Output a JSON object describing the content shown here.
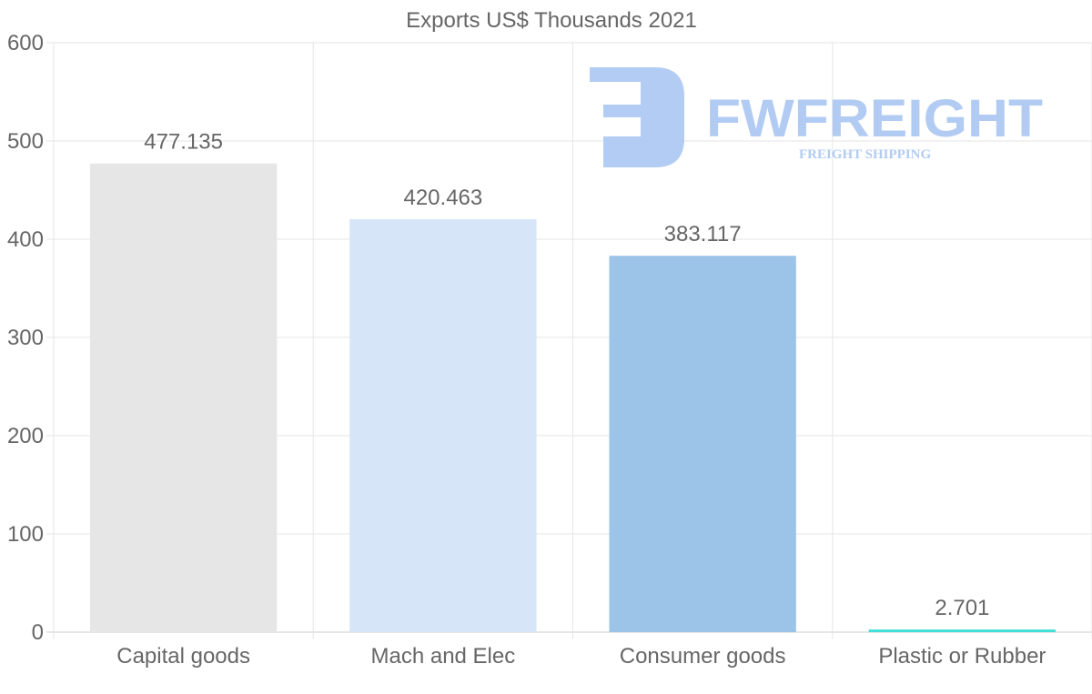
{
  "chart_data": {
    "type": "bar",
    "title": "Exports US$ Thousands 2021",
    "categories": [
      "Capital goods",
      "Mach and Elec",
      "Consumer goods",
      "Plastic or Rubber"
    ],
    "values": [
      477.135,
      420.463,
      383.117,
      2.701
    ],
    "data_labels": [
      "477.135",
      "420.463",
      "383.117",
      "2.701"
    ],
    "colors": [
      "#e6e6e6",
      "#d6e6f8",
      "#9bc4e8",
      "#40e0d8"
    ],
    "xlabel": "",
    "ylabel": "",
    "ylim": [
      0,
      600
    ],
    "yticks": [
      "0",
      "100",
      "200",
      "300",
      "400",
      "500",
      "600"
    ],
    "grid": true,
    "legend": "none"
  },
  "watermark": {
    "name": "FWFREIGHT",
    "tagline": "FREIGHT SHIPPING",
    "color": "#aac6f2"
  }
}
